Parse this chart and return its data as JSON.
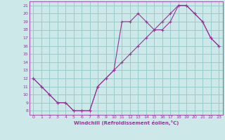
{
  "xlabel": "Windchill (Refroidissement éolien,°C)",
  "background_color": "#cce8e8",
  "line_color": "#993399",
  "grid_color": "#99cccc",
  "hours": [
    0,
    1,
    2,
    3,
    4,
    5,
    6,
    7,
    8,
    9,
    10,
    11,
    12,
    13,
    14,
    15,
    16,
    17,
    18,
    19,
    20,
    21,
    22,
    23
  ],
  "temp": [
    12,
    11,
    10,
    9,
    9,
    8,
    8,
    8,
    11,
    12,
    13,
    14,
    15,
    16,
    17,
    18,
    19,
    20,
    21,
    21,
    20,
    19,
    17,
    16
  ],
  "windchill": [
    12,
    11,
    10,
    9,
    9,
    8,
    8,
    8,
    11,
    12,
    13,
    19,
    19,
    20,
    19,
    18,
    18,
    19,
    21,
    21,
    20,
    19,
    17,
    16
  ],
  "ylim_min": 7.5,
  "ylim_max": 21.5,
  "xlim_min": -0.5,
  "xlim_max": 23.5,
  "yticks": [
    8,
    9,
    10,
    11,
    12,
    13,
    14,
    15,
    16,
    17,
    18,
    19,
    20,
    21
  ],
  "xticks": [
    0,
    1,
    2,
    3,
    4,
    5,
    6,
    7,
    8,
    9,
    10,
    11,
    12,
    13,
    14,
    15,
    16,
    17,
    18,
    19,
    20,
    21,
    22,
    23
  ]
}
